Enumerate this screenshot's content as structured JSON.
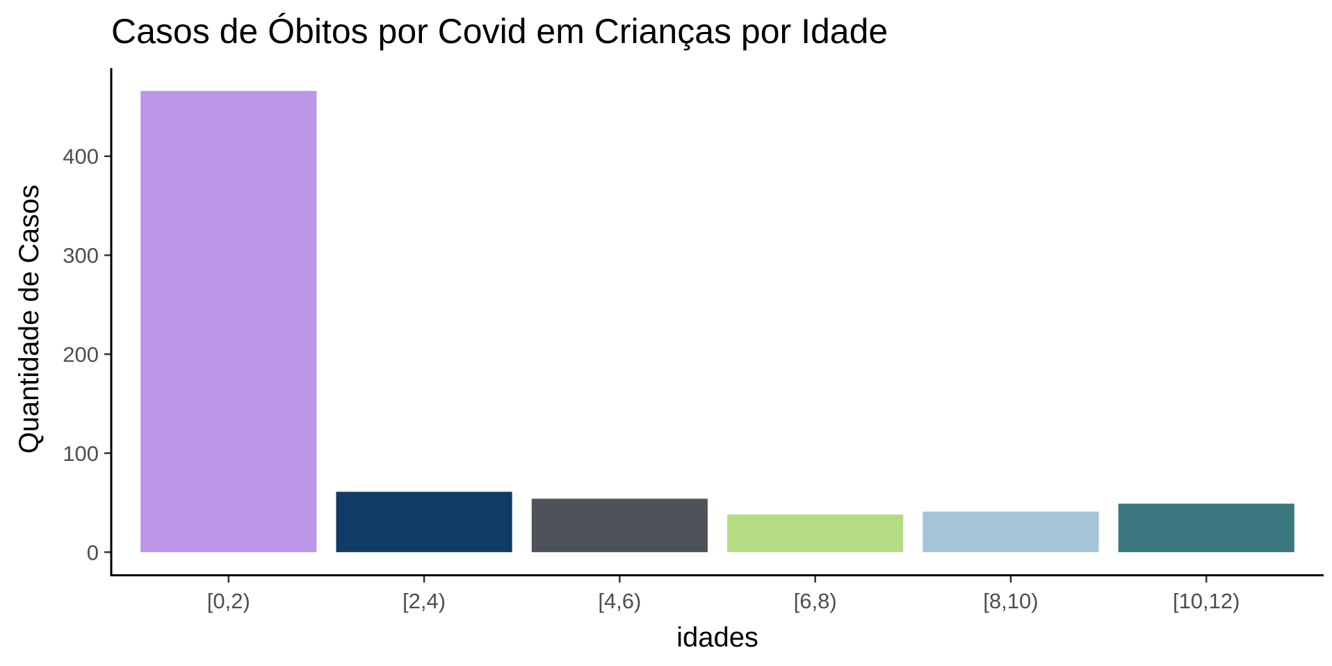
{
  "chart_data": {
    "type": "bar",
    "title": "Casos de Óbitos por Covid em Crianças por Idade",
    "xlabel": "idades",
    "ylabel": "Quantidade de Casos",
    "categories": [
      "[0,2)",
      "[2,4)",
      "[4,6)",
      "[6,8)",
      "[8,10)",
      "[10,12)"
    ],
    "values": [
      466,
      61,
      54,
      38,
      41,
      49
    ],
    "colors": [
      "#BB95E6",
      "#0F3B64",
      "#4D5159",
      "#B5DC82",
      "#A4C4D8",
      "#3A767E"
    ],
    "yticks": [
      0,
      100,
      200,
      300,
      400
    ],
    "ylim": [
      -23,
      489
    ],
    "grid": false,
    "legend": "none"
  }
}
